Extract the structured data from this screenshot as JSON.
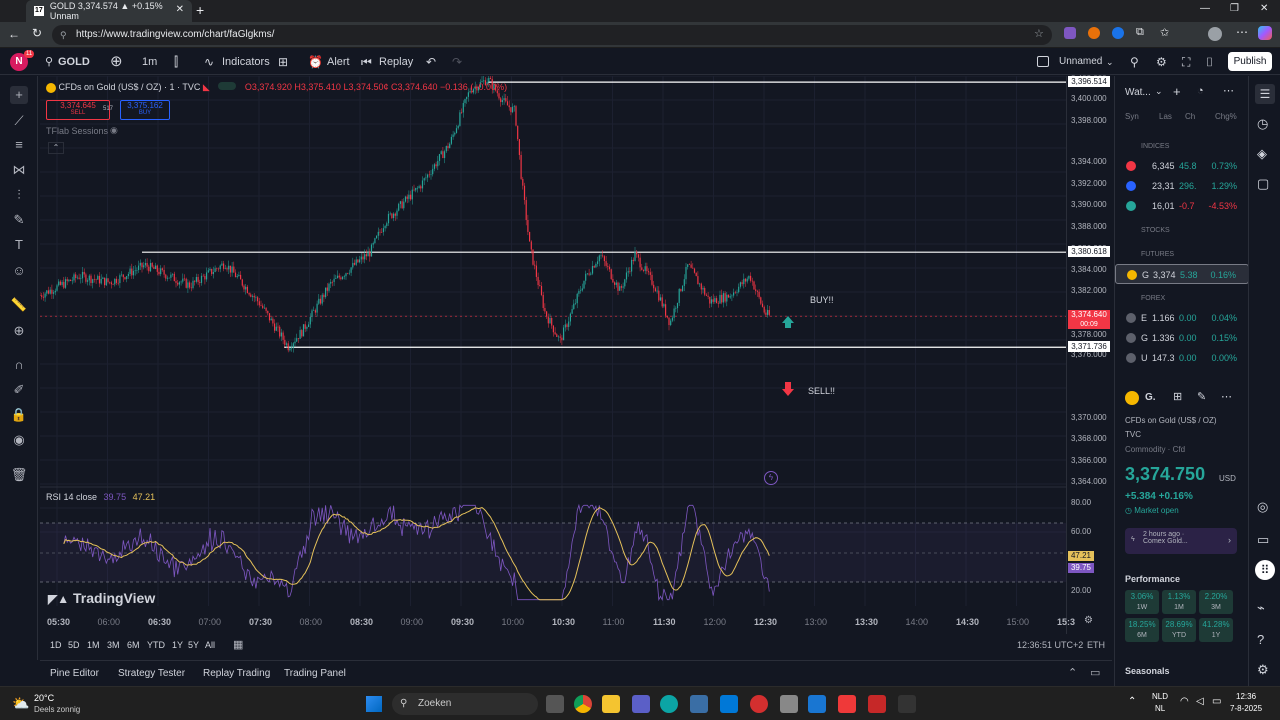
{
  "browser": {
    "tab_title": "GOLD 3,374.574 ▲ +0.15% Unnam",
    "url": "https://www.tradingview.com/chart/faGlgkms/"
  },
  "toolbar": {
    "avatar_letter": "N",
    "avatar_badge": "11",
    "symbol": "GOLD",
    "interval": "1m",
    "indicators": "Indicators",
    "alert": "Alert",
    "replay": "Replay",
    "layout_name": "Unnamed",
    "publish": "Publish"
  },
  "legend": {
    "title": "CFDs on Gold (US$ / OZ) · 1 · TVC",
    "ohlc": "O3,374.920 H3,375.410 L3,374.50¢ C3,374.640 −0.136 (−0.00%)",
    "sell_price": "3,374.645",
    "sell_label": "SELL",
    "spread": "517",
    "buy_price": "3,375.162",
    "buy_label": "BUY",
    "sessions": "TFlab Sessions",
    "rsi_label": "RSI 14 close",
    "rsi_value1": "39.75",
    "rsi_value2": "47.21"
  },
  "annotations": {
    "buy_text": "BUY!!",
    "sell_text": "SELL!!"
  },
  "price_axis": {
    "ticks": [
      "3,400.000",
      "3,398.000",
      "3,394.000",
      "3,392.000",
      "3,390.000",
      "3,388.000",
      "3,386.000",
      "3,384.000",
      "3,382.000",
      "3,378.000",
      "3,376.000",
      "3,370.000",
      "3,368.000",
      "3,366.000",
      "3,364.000"
    ],
    "level_top": "3,396.514",
    "level_mid": "3,380.618",
    "level_bot": "3,371.736",
    "current_price": "3,374.640",
    "countdown": "00:09",
    "rsi_ticks": [
      "80.00",
      "60.00",
      "20.00"
    ],
    "rsi_tag1": "47.21",
    "rsi_tag2": "39.75",
    "top_label": "3,402.000"
  },
  "time_axis": [
    "05:30",
    "06:00",
    "06:30",
    "07:00",
    "07:30",
    "08:00",
    "08:30",
    "09:00",
    "09:30",
    "10:00",
    "10:30",
    "11:00",
    "11:30",
    "12:00",
    "12:30",
    "13:00",
    "13:30",
    "14:00",
    "14:30",
    "15:00",
    "15:3"
  ],
  "range_bar": {
    "ranges": [
      "1D",
      "5D",
      "1M",
      "3M",
      "6M",
      "YTD",
      "1Y",
      "5Y",
      "All"
    ],
    "clock": "12:36:51 UTC+2",
    "session": "ETH"
  },
  "bottom_tabs": [
    "Pine Editor",
    "Strategy Tester",
    "Replay Trading",
    "Trading Panel"
  ],
  "watermark": "TradingView",
  "watchlist": {
    "title": "Wat...",
    "columns": [
      "Syn",
      "Las",
      "Ch",
      "Chg%"
    ],
    "sections": {
      "indices": "INDICES",
      "stocks": "STOCKS",
      "futures": "FUTURES",
      "forex": "FOREX"
    },
    "indices": [
      {
        "sym": "",
        "last": "6,345",
        "chg": "45.8",
        "pct": "0.73%",
        "color": "#26a69a"
      },
      {
        "sym": "",
        "last": "23,31",
        "chg": "296.",
        "pct": "1.29%",
        "color": "#26a69a"
      },
      {
        "sym": "",
        "last": "16,01",
        "chg": "-0.7",
        "pct": "-4.53%",
        "color": "#f23645"
      }
    ],
    "futures": [
      {
        "sym": "G",
        "last": "3,374",
        "chg": "5.38",
        "pct": "0.16%",
        "color": "#26a69a"
      }
    ],
    "forex": [
      {
        "sym": "E",
        "last": "1.166",
        "chg": "0.00",
        "pct": "0.04%",
        "color": "#26a69a"
      },
      {
        "sym": "G",
        "last": "1.336",
        "chg": "0.00",
        "pct": "0.15%",
        "color": "#26a69a"
      },
      {
        "sym": "U",
        "last": "147.3",
        "chg": "0.00",
        "pct": "0.00%",
        "color": "#26a69a"
      }
    ]
  },
  "details": {
    "symbol": "G.",
    "name": "CFDs on Gold (US$ / OZ)",
    "exchange": "TVC",
    "type": "Commodity · Cfd",
    "price": "3,374.750",
    "currency": "USD",
    "change": "+5.384 +0.16%",
    "market_status": "Market open",
    "news_time": "2 hours ago ·",
    "news_source": "Comex Gold...",
    "performance_title": "Performance",
    "performance": [
      {
        "value": "3.06%",
        "period": "1W"
      },
      {
        "value": "1.13%",
        "period": "1M"
      },
      {
        "value": "2.20%",
        "period": "3M"
      },
      {
        "value": "18.25%",
        "period": "6M"
      },
      {
        "value": "28.69%",
        "period": "YTD"
      },
      {
        "value": "41.28%",
        "period": "1Y"
      }
    ],
    "seasonals": "Seasonals"
  },
  "taskbar": {
    "temp": "20°C",
    "weather": "Deels zonnig",
    "search": "Zoeken",
    "lang1": "NLD",
    "lang2": "NL",
    "time": "12:36",
    "date": "7-8-2025"
  },
  "colors": {
    "up": "#26a69a",
    "down": "#f23645",
    "rsi": "#7e57c2",
    "ma": "#e5c15a",
    "bg": "#131722"
  }
}
